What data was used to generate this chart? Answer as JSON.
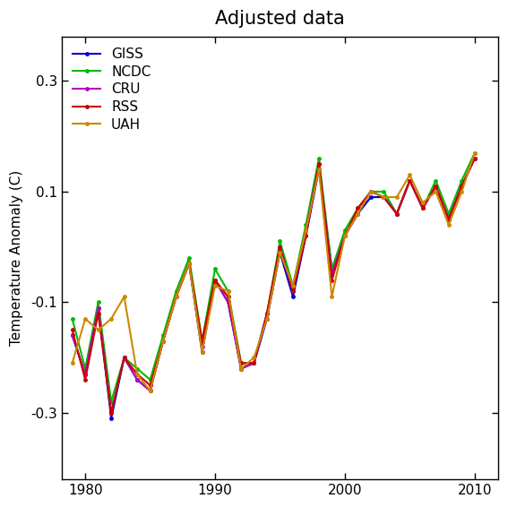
{
  "title": "Adjusted data",
  "ylabel": "Temperature Anomaly (C)",
  "years": [
    1979,
    1980,
    1981,
    1982,
    1983,
    1984,
    1985,
    1986,
    1987,
    1988,
    1989,
    1990,
    1991,
    1992,
    1993,
    1994,
    1995,
    1996,
    1997,
    1998,
    1999,
    2000,
    2001,
    2002,
    2003,
    2004,
    2005,
    2006,
    2007,
    2008,
    2009,
    2010
  ],
  "GISS": [
    -0.16,
    -0.23,
    -0.11,
    -0.31,
    -0.2,
    -0.24,
    -0.26,
    -0.17,
    -0.09,
    -0.03,
    -0.19,
    -0.06,
    -0.1,
    -0.22,
    -0.21,
    -0.13,
    -0.01,
    -0.09,
    0.02,
    0.14,
    -0.04,
    0.02,
    0.06,
    0.09,
    0.09,
    0.06,
    0.12,
    0.07,
    0.11,
    0.05,
    0.11,
    0.16
  ],
  "NCDC": [
    -0.13,
    -0.22,
    -0.1,
    -0.28,
    -0.2,
    -0.22,
    -0.24,
    -0.16,
    -0.08,
    -0.02,
    -0.17,
    -0.04,
    -0.08,
    -0.21,
    -0.21,
    -0.12,
    0.01,
    -0.07,
    0.04,
    0.16,
    -0.04,
    0.03,
    0.07,
    0.1,
    0.1,
    0.06,
    0.12,
    0.07,
    0.12,
    0.06,
    0.12,
    0.17
  ],
  "CRU": [
    -0.16,
    -0.23,
    -0.11,
    -0.3,
    -0.2,
    -0.24,
    -0.26,
    -0.17,
    -0.09,
    -0.03,
    -0.18,
    -0.06,
    -0.1,
    -0.22,
    -0.21,
    -0.12,
    0.0,
    -0.08,
    0.03,
    0.15,
    -0.05,
    0.02,
    0.06,
    0.1,
    0.09,
    0.06,
    0.12,
    0.07,
    0.11,
    0.05,
    0.11,
    0.16
  ],
  "RSS": [
    -0.15,
    -0.24,
    -0.12,
    -0.3,
    -0.2,
    -0.23,
    -0.25,
    -0.17,
    -0.09,
    -0.03,
    -0.17,
    -0.06,
    -0.09,
    -0.21,
    -0.21,
    -0.12,
    0.0,
    -0.08,
    0.02,
    0.15,
    -0.06,
    0.02,
    0.07,
    0.1,
    0.09,
    0.06,
    0.12,
    0.07,
    0.11,
    0.05,
    0.11,
    0.16
  ],
  "UAH": [
    -0.21,
    -0.13,
    -0.15,
    -0.13,
    -0.09,
    -0.23,
    -0.26,
    -0.17,
    -0.09,
    -0.03,
    -0.19,
    -0.07,
    -0.08,
    -0.22,
    -0.2,
    -0.13,
    -0.01,
    -0.07,
    0.03,
    0.14,
    -0.09,
    0.02,
    0.06,
    0.1,
    0.09,
    0.09,
    0.13,
    0.08,
    0.1,
    0.04,
    0.1,
    0.17
  ],
  "colors": {
    "GISS": "#0000cc",
    "NCDC": "#00bb00",
    "CRU": "#bb00bb",
    "RSS": "#cc0000",
    "UAH": "#cc8800"
  },
  "xlim": [
    1978.5,
    2011.5
  ],
  "ylim": [
    -0.42,
    0.38
  ],
  "yticks": [
    -0.3,
    -0.1,
    0.1,
    0.3
  ],
  "xticks": [
    1980,
    1990,
    2000,
    2010
  ],
  "background_color": "#ffffff"
}
